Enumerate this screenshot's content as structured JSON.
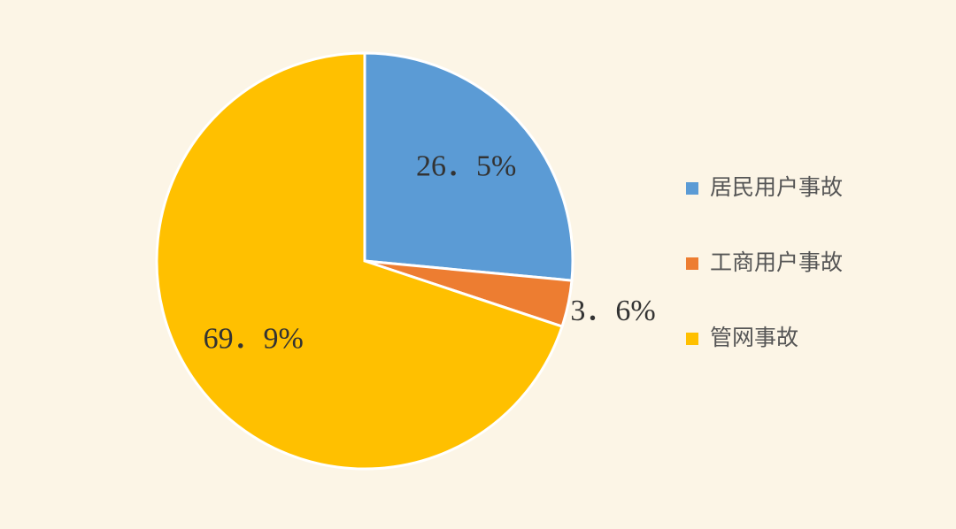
{
  "chart_data": {
    "type": "pie",
    "categories": [
      "居民用户事故",
      "工商用户事故",
      "管网事故"
    ],
    "values": [
      26.5,
      3.6,
      69.9
    ],
    "value_labels": [
      "26．5%",
      "3．6%",
      "69．9%"
    ],
    "colors": [
      "#5b9bd5",
      "#ed7d31",
      "#ffc000"
    ],
    "legend": "right"
  }
}
